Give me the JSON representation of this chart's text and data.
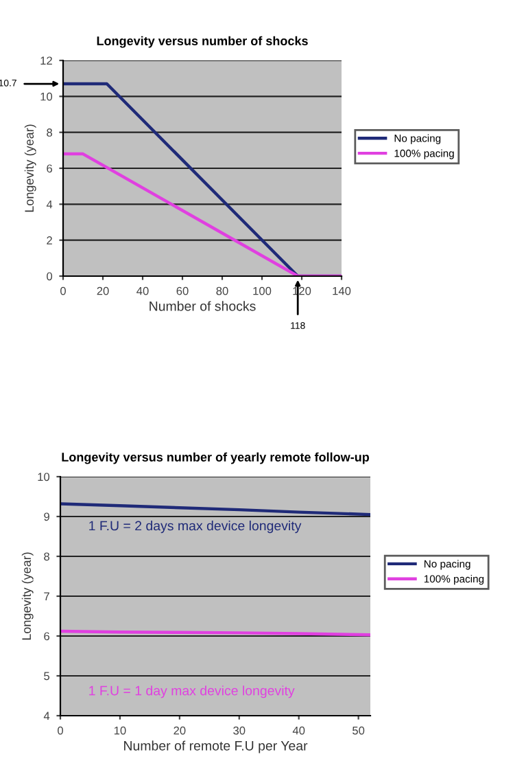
{
  "chart_data": [
    {
      "type": "line",
      "title": "Longevity versus number of shocks",
      "xlabel": "Number of shocks",
      "ylabel": "Longevity (year)",
      "series": [
        {
          "name": "No pacing",
          "color": "#1f2a78",
          "x": [
            0,
            22,
            118,
            140
          ],
          "values": [
            10.7,
            10.7,
            0,
            0
          ]
        },
        {
          "name": "100% pacing",
          "color": "#e040e0",
          "x": [
            0,
            10,
            118,
            140
          ],
          "values": [
            6.8,
            6.8,
            0,
            0
          ]
        }
      ],
      "xlim": [
        0,
        140
      ],
      "xticks": [
        0,
        20,
        40,
        60,
        80,
        100,
        120,
        140
      ],
      "ylim": [
        0,
        12
      ],
      "yticks": [
        0,
        2,
        4,
        6,
        8,
        10,
        12
      ],
      "annotations": [
        {
          "text": "10.7",
          "x": 0,
          "y": 10.7
        },
        {
          "text": "118",
          "x": 118,
          "y": 0
        }
      ],
      "grid": "y",
      "legend": "right",
      "marker": "none",
      "line_style": "solid"
    },
    {
      "type": "line",
      "title": "Longevity versus number of yearly remote follow-up",
      "xlabel": "Number of remote F.U per Year",
      "ylabel": "Longevity (year)",
      "series": [
        {
          "name": "No pacing",
          "color": "#1f2a78",
          "x": [
            0,
            10,
            20,
            30,
            40,
            52
          ],
          "values": [
            9.32,
            9.27,
            9.22,
            9.17,
            9.11,
            9.05
          ]
        },
        {
          "name": "100% pacing",
          "color": "#e040e0",
          "x": [
            0,
            10,
            20,
            30,
            40,
            52
          ],
          "values": [
            6.12,
            6.1,
            6.09,
            6.08,
            6.06,
            6.03
          ]
        }
      ],
      "xlim": [
        0,
        52
      ],
      "xticks": [
        0,
        10,
        20,
        30,
        40,
        50
      ],
      "ylim": [
        4,
        10
      ],
      "yticks": [
        4,
        5,
        6,
        7,
        8,
        9,
        10
      ],
      "annotations": [
        "1 F.U = 2 days max device longevity",
        "1 F.U = 1 day max device longevity"
      ],
      "grid": "y",
      "legend": "right",
      "marker": "none",
      "line_style": "solid"
    }
  ]
}
